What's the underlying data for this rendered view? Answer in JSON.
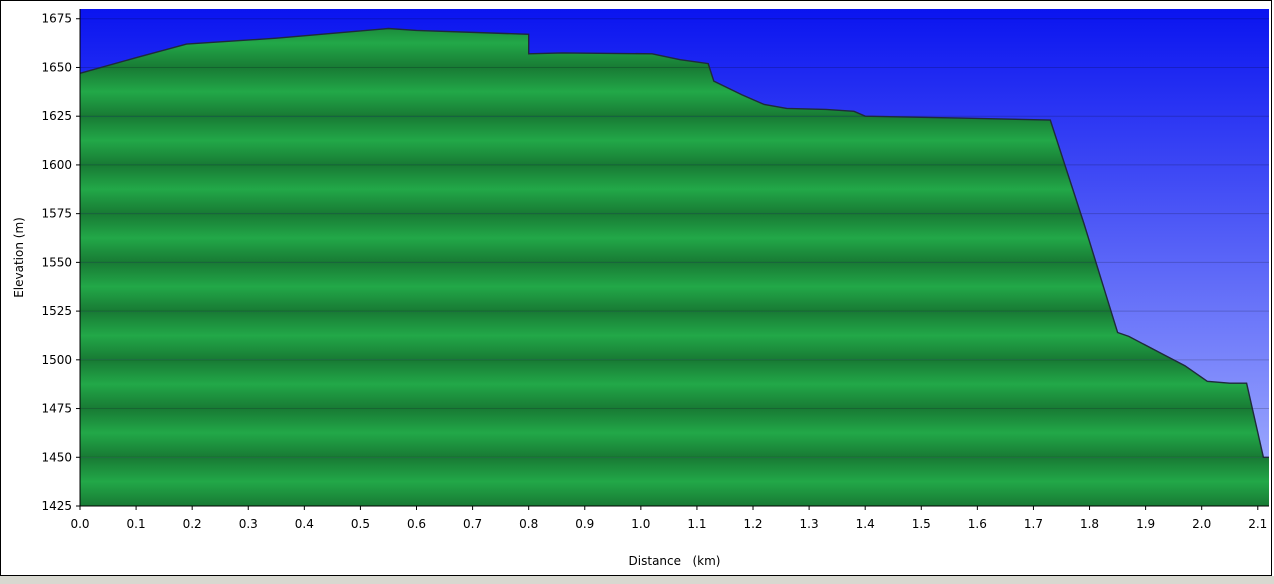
{
  "chart_data": {
    "type": "area",
    "xlabel": "Distance   (km)",
    "ylabel": "Elevation (m)",
    "xlim": [
      0.0,
      2.12
    ],
    "ylim": [
      1425,
      1680
    ],
    "x_ticks": [
      "0.0",
      "0.1",
      "0.2",
      "0.3",
      "0.4",
      "0.5",
      "0.6",
      "0.7",
      "0.8",
      "0.9",
      "1.0",
      "1.1",
      "1.2",
      "1.3",
      "1.4",
      "1.5",
      "1.6",
      "1.7",
      "1.8",
      "1.9",
      "2.0",
      "2.1"
    ],
    "y_ticks": [
      "1425",
      "1450",
      "1475",
      "1500",
      "1525",
      "1550",
      "1575",
      "1600",
      "1625",
      "1650",
      "1675"
    ],
    "grid": true,
    "colors": {
      "sky_top": "#0a14f0",
      "sky_bottom": "#a8b4ff",
      "terrain_light": "#22a848",
      "terrain_dark": "#187a34",
      "outline": "#1f2a3a"
    },
    "series": [
      {
        "x": [
          0.0,
          0.1,
          0.19,
          0.35,
          0.55,
          0.6,
          0.8,
          0.8,
          0.86,
          1.02,
          1.07,
          1.12,
          1.13,
          1.18,
          1.22,
          1.26,
          1.33,
          1.38,
          1.4,
          1.57,
          1.73,
          1.79,
          1.85,
          1.87,
          1.93,
          1.97,
          2.01,
          2.05,
          2.08,
          2.11,
          2.12
        ],
        "y": [
          1647,
          1655,
          1662,
          1665,
          1670,
          1669,
          1667,
          1657,
          1657.5,
          1657,
          1654,
          1652,
          1643,
          1636,
          1631,
          1629,
          1628.5,
          1627.5,
          1625,
          1624,
          1623,
          1570,
          1514,
          1512,
          1503,
          1497,
          1489,
          1488,
          1488,
          1450,
          1450
        ]
      }
    ]
  }
}
